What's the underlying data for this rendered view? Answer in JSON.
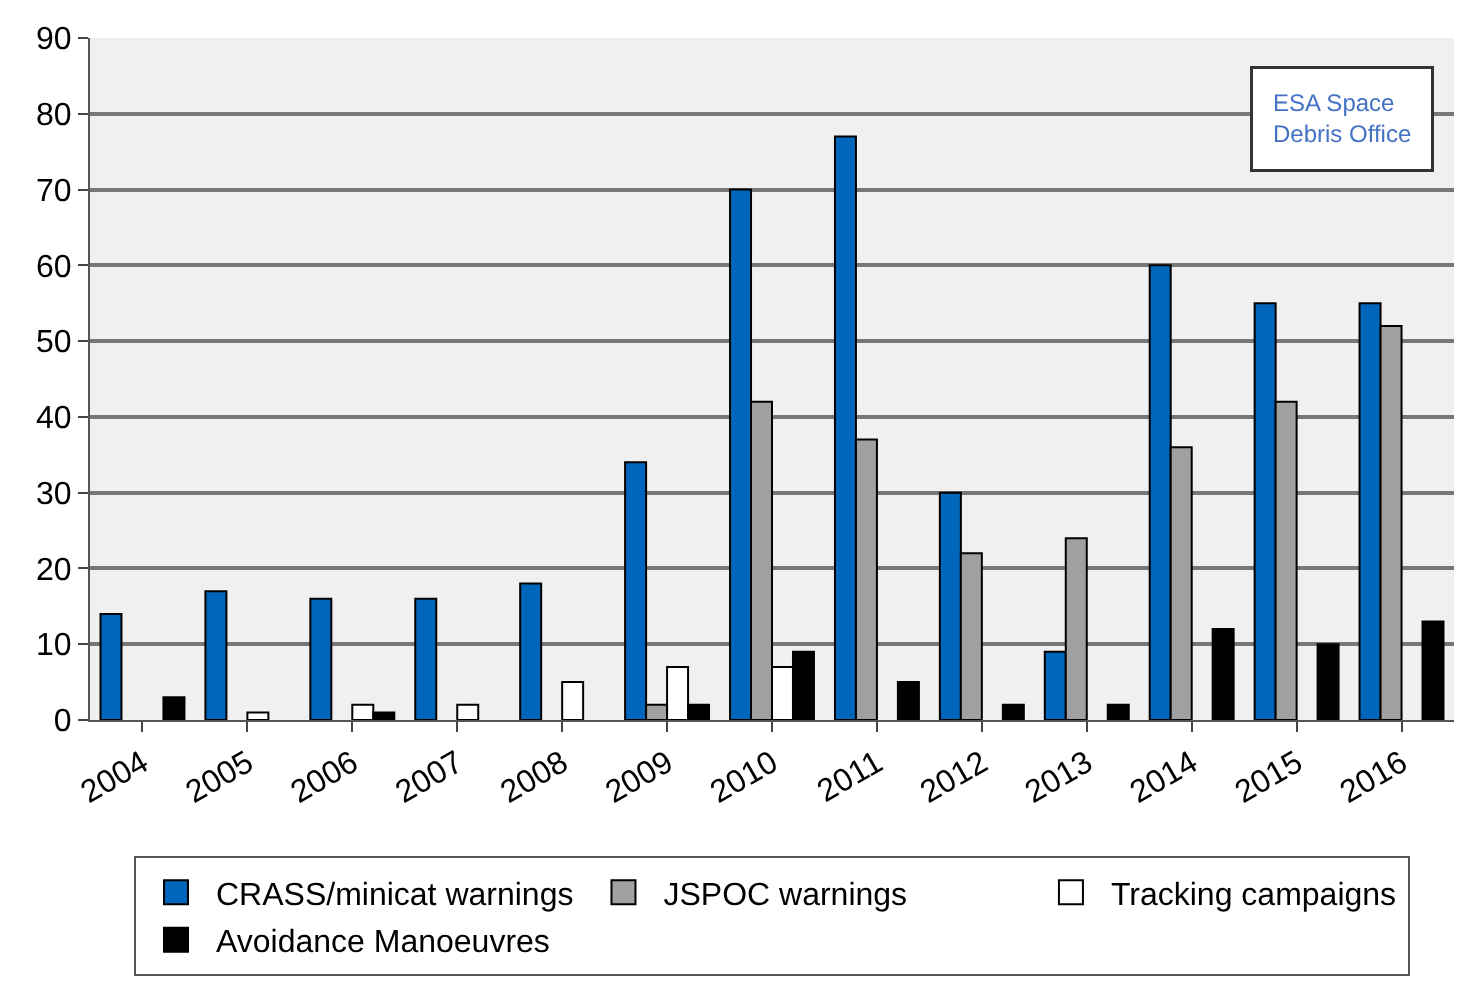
{
  "chart_data": {
    "type": "bar",
    "categories": [
      "2004",
      "2005",
      "2006",
      "2007",
      "2008",
      "2009",
      "2010",
      "2011",
      "2012",
      "2013",
      "2014",
      "2015",
      "2016"
    ],
    "series": [
      {
        "name": "CRASS/minicat warnings",
        "color": "#0066bb",
        "values": [
          14,
          17,
          16,
          16,
          18,
          34,
          70,
          77,
          30,
          9,
          60,
          55,
          55
        ]
      },
      {
        "name": "JSPOC warnings",
        "color": "#a0a0a0",
        "values": [
          null,
          null,
          null,
          null,
          null,
          2,
          42,
          37,
          22,
          24,
          36,
          42,
          52
        ]
      },
      {
        "name": "Tracking campaigns",
        "color": "#ffffff",
        "values": [
          null,
          1,
          2,
          2,
          5,
          7,
          7,
          null,
          null,
          null,
          null,
          null,
          null
        ]
      },
      {
        "name": "Avoidance Manoeuvres",
        "color": "#000000",
        "values": [
          3,
          null,
          1,
          null,
          null,
          2,
          9,
          5,
          2,
          2,
          12,
          10,
          13
        ]
      }
    ],
    "annotations": [
      "ESA Space Debris Office"
    ],
    "ylim": [
      0,
      90
    ],
    "yticks": [
      0,
      10,
      20,
      30,
      40,
      50,
      60,
      70,
      80,
      90
    ],
    "grid": "y",
    "legend": "bottom"
  }
}
